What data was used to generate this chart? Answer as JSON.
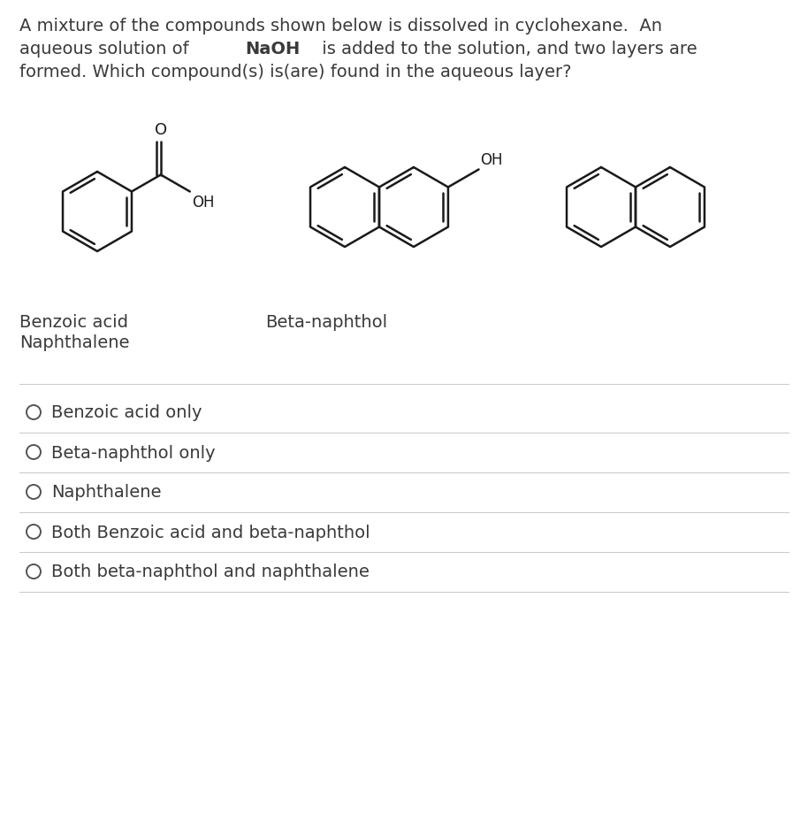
{
  "background_color": "#ffffff",
  "text_color": "#3a3a3a",
  "line_color": "#cccccc",
  "struct_color": "#1a1a1a",
  "question_line1": "A mixture of the compounds shown below is dissolved in cyclohexane.  An",
  "question_line2_pre": "aqueous solution of ",
  "question_line2_bold": "NaOH",
  "question_line2_post": " is added to the solution, and two layers are",
  "question_line3": "formed. Which compound(s) is(are) found in the aqueous layer?",
  "label_benzoic": "Benzoic acid",
  "label_naphthalene": "Naphthalene",
  "label_beta": "Beta-naphthol",
  "options": [
    "Benzoic acid only",
    "Beta-naphthol only",
    "Naphthalene",
    "Both Benzoic acid and beta-naphthol",
    "Both beta-naphthol and naphthalene"
  ],
  "font_size": 14.0,
  "lw": 1.8
}
